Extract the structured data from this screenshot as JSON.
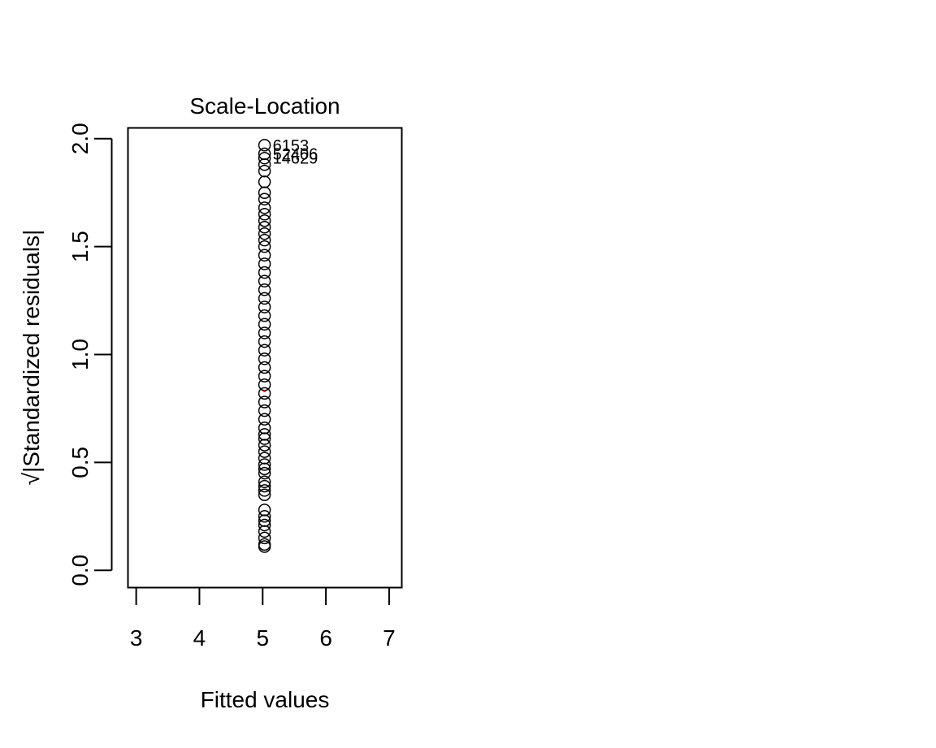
{
  "chart_data": {
    "type": "scatter",
    "title": "Scale-Location",
    "xlabel": "Fitted values",
    "ylabel": "√|Standardized residuals|",
    "xlim": [
      2.87,
      7.2
    ],
    "ylim": [
      -0.08,
      2.05
    ],
    "xticks": [
      3,
      4,
      5,
      6,
      7
    ],
    "yticks": [
      0.0,
      0.5,
      1.0,
      1.5,
      2.0
    ],
    "ytick_labels": [
      "0.0",
      "0.5",
      "1.0",
      "1.5",
      "2.0"
    ],
    "grid": false,
    "x_value": 5.03,
    "y_values": [
      0.11,
      0.12,
      0.15,
      0.18,
      0.21,
      0.23,
      0.25,
      0.28,
      0.35,
      0.37,
      0.39,
      0.41,
      0.45,
      0.47,
      0.49,
      0.52,
      0.55,
      0.58,
      0.61,
      0.63,
      0.66,
      0.7,
      0.74,
      0.78,
      0.82,
      0.86,
      0.9,
      0.94,
      0.98,
      1.02,
      1.06,
      1.1,
      1.14,
      1.18,
      1.22,
      1.26,
      1.3,
      1.34,
      1.38,
      1.42,
      1.46,
      1.5,
      1.53,
      1.56,
      1.59,
      1.62,
      1.65,
      1.68,
      1.72,
      1.75,
      1.8,
      1.85,
      1.88,
      1.91,
      1.93,
      1.97
    ],
    "labeled_points": [
      {
        "label": "6153",
        "y": 1.97
      },
      {
        "label": "52406",
        "y": 1.93
      },
      {
        "label": "14629",
        "y": 1.91
      }
    ],
    "smooth_line": {
      "color": "#ff0000",
      "y": 0.83
    }
  }
}
